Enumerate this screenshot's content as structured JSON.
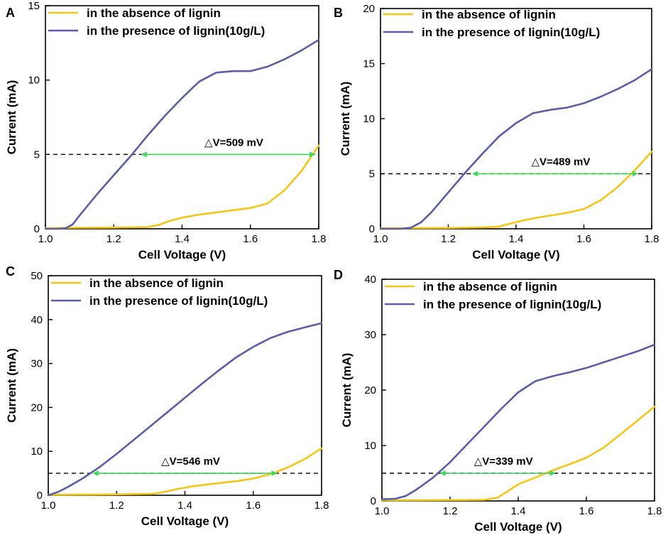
{
  "chart_data": [
    {
      "panel": "A",
      "type": "line",
      "xlabel": "Cell Voltage (V)",
      "ylabel": "Current (mA)",
      "xlim": [
        1.0,
        1.8
      ],
      "ylim": [
        0,
        15
      ],
      "xticks": [
        1.0,
        1.2,
        1.4,
        1.6,
        1.8
      ],
      "xtick_labels": [
        "1.0",
        "1.2",
        "1.4",
        "1.6",
        "1.8"
      ],
      "yticks": [
        0,
        5,
        10,
        15
      ],
      "ytick_labels": [
        "0",
        "5",
        "10",
        "15"
      ],
      "legend": "top-left",
      "series": [
        {
          "name": "in the absence of lignin",
          "color": "#F5C518",
          "x": [
            1.0,
            1.1,
            1.2,
            1.3,
            1.33,
            1.36,
            1.4,
            1.45,
            1.5,
            1.55,
            1.6,
            1.65,
            1.7,
            1.75,
            1.8
          ],
          "y": [
            0.05,
            0.07,
            0.08,
            0.12,
            0.25,
            0.5,
            0.75,
            0.95,
            1.1,
            1.25,
            1.4,
            1.7,
            2.6,
            3.9,
            5.6
          ]
        },
        {
          "name": "in the presence of lignin(10g/L)",
          "color": "#5B5EA6",
          "x": [
            1.0,
            1.04,
            1.06,
            1.08,
            1.1,
            1.15,
            1.2,
            1.25,
            1.3,
            1.35,
            1.4,
            1.45,
            1.5,
            1.55,
            1.6,
            1.65,
            1.7,
            1.75,
            1.8
          ],
          "y": [
            0.0,
            0.0,
            0.05,
            0.3,
            0.9,
            2.3,
            3.6,
            4.9,
            6.3,
            7.6,
            8.8,
            9.9,
            10.5,
            10.6,
            10.6,
            10.9,
            11.4,
            12.0,
            12.7
          ]
        }
      ],
      "reference_y": 5,
      "delta_label": "△V=509 mV",
      "delta_x": [
        1.28,
        1.79
      ]
    },
    {
      "panel": "B",
      "type": "line",
      "xlabel": "Cell Voltage (V)",
      "ylabel": "Current (mA)",
      "xlim": [
        1.0,
        1.8
      ],
      "ylim": [
        0,
        20
      ],
      "xticks": [
        1.0,
        1.2,
        1.4,
        1.6,
        1.8
      ],
      "xtick_labels": [
        "1.0",
        "1.2",
        "1.4",
        "1.6",
        "1.8"
      ],
      "yticks": [
        0,
        5,
        10,
        15,
        20
      ],
      "ytick_labels": [
        "0",
        "5",
        "10",
        "15",
        "20"
      ],
      "legend": "top-left",
      "series": [
        {
          "name": "in the absence of lignin",
          "color": "#F5C518",
          "x": [
            1.0,
            1.1,
            1.2,
            1.3,
            1.35,
            1.38,
            1.42,
            1.46,
            1.5,
            1.55,
            1.6,
            1.65,
            1.7,
            1.75,
            1.8
          ],
          "y": [
            0.05,
            0.07,
            0.08,
            0.12,
            0.2,
            0.45,
            0.75,
            1.0,
            1.2,
            1.45,
            1.8,
            2.6,
            3.8,
            5.3,
            7.0
          ]
        },
        {
          "name": "in the presence of lignin(10g/L)",
          "color": "#5B5EA6",
          "x": [
            1.0,
            1.06,
            1.09,
            1.12,
            1.15,
            1.2,
            1.25,
            1.3,
            1.35,
            1.4,
            1.45,
            1.5,
            1.55,
            1.6,
            1.65,
            1.7,
            1.75,
            1.8
          ],
          "y": [
            0.0,
            0.0,
            0.1,
            0.6,
            1.5,
            3.3,
            5.1,
            6.8,
            8.4,
            9.6,
            10.5,
            10.8,
            11.0,
            11.4,
            12.0,
            12.7,
            13.5,
            14.5
          ]
        }
      ],
      "reference_y": 5,
      "delta_label": "△V=489 mV",
      "delta_x": [
        1.27,
        1.76
      ]
    },
    {
      "panel": "C",
      "type": "line",
      "xlabel": "Cell Voltage (V)",
      "ylabel": "Current (mA)",
      "xlim": [
        1.0,
        1.8
      ],
      "ylim": [
        0,
        50
      ],
      "xticks": [
        1.0,
        1.2,
        1.4,
        1.6,
        1.8
      ],
      "xtick_labels": [
        "1.0",
        "1.2",
        "1.4",
        "1.6",
        "1.8"
      ],
      "yticks": [
        0,
        10,
        20,
        30,
        40,
        50
      ],
      "ytick_labels": [
        "0",
        "10",
        "20",
        "30",
        "40",
        "50"
      ],
      "legend": "top-left",
      "series": [
        {
          "name": "in the absence of lignin",
          "color": "#F5C518",
          "x": [
            1.0,
            1.1,
            1.2,
            1.3,
            1.33,
            1.37,
            1.42,
            1.48,
            1.55,
            1.6,
            1.65,
            1.7,
            1.75,
            1.8
          ],
          "y": [
            0.1,
            0.15,
            0.2,
            0.3,
            0.6,
            1.3,
            2.0,
            2.6,
            3.2,
            3.8,
            4.8,
            6.3,
            8.2,
            10.7
          ]
        },
        {
          "name": "in the presence of lignin(10g/L)",
          "color": "#5B5EA6",
          "x": [
            1.0,
            1.03,
            1.06,
            1.1,
            1.15,
            1.2,
            1.25,
            1.3,
            1.35,
            1.4,
            1.45,
            1.5,
            1.55,
            1.6,
            1.65,
            1.7,
            1.75,
            1.8
          ],
          "y": [
            0.0,
            0.8,
            2.0,
            3.8,
            6.4,
            9.4,
            12.6,
            15.8,
            19.0,
            22.2,
            25.4,
            28.5,
            31.4,
            33.8,
            35.8,
            37.2,
            38.2,
            39.2
          ]
        }
      ],
      "reference_y": 5,
      "delta_label": "△V=546 mV",
      "delta_x": [
        1.13,
        1.67
      ]
    },
    {
      "panel": "D",
      "type": "line",
      "xlabel": "Cell Voltage (V)",
      "ylabel": "Current (mA)",
      "xlim": [
        1.0,
        1.8
      ],
      "ylim": [
        0,
        40
      ],
      "xticks": [
        1.0,
        1.2,
        1.4,
        1.6,
        1.8
      ],
      "xtick_labels": [
        "1.0",
        "1.2",
        "1.4",
        "1.6",
        "1.8"
      ],
      "yticks": [
        0,
        10,
        20,
        30,
        40
      ],
      "ytick_labels": [
        "0",
        "10",
        "20",
        "30",
        "40"
      ],
      "legend": "top-left",
      "series": [
        {
          "name": "in the absence of lignin",
          "color": "#F5C518",
          "x": [
            1.0,
            1.1,
            1.2,
            1.3,
            1.34,
            1.37,
            1.4,
            1.45,
            1.5,
            1.55,
            1.6,
            1.65,
            1.7,
            1.75,
            1.8
          ],
          "y": [
            0.1,
            0.12,
            0.15,
            0.2,
            0.6,
            1.8,
            3.0,
            4.2,
            5.5,
            6.6,
            7.8,
            9.6,
            12.0,
            14.5,
            17.0
          ]
        },
        {
          "name": "in the presence of lignin(10g/L)",
          "color": "#5B5EA6",
          "x": [
            1.0,
            1.04,
            1.07,
            1.1,
            1.15,
            1.2,
            1.25,
            1.3,
            1.35,
            1.4,
            1.45,
            1.5,
            1.55,
            1.6,
            1.65,
            1.7,
            1.75,
            1.8
          ],
          "y": [
            0.3,
            0.4,
            0.9,
            2.0,
            4.2,
            7.0,
            10.2,
            13.4,
            16.6,
            19.6,
            21.6,
            22.5,
            23.2,
            24.0,
            25.0,
            26.0,
            27.0,
            28.2
          ]
        }
      ],
      "reference_y": 5,
      "delta_label": "△V=339 mV",
      "delta_x": [
        1.17,
        1.51
      ]
    }
  ],
  "panel_letters": [
    "A",
    "B",
    "C",
    "D"
  ],
  "colors": {
    "absence": "#F5C518",
    "presence": "#5B5EA6",
    "delta_arrow": "#3CDC5A",
    "reference_line": "#000000"
  }
}
